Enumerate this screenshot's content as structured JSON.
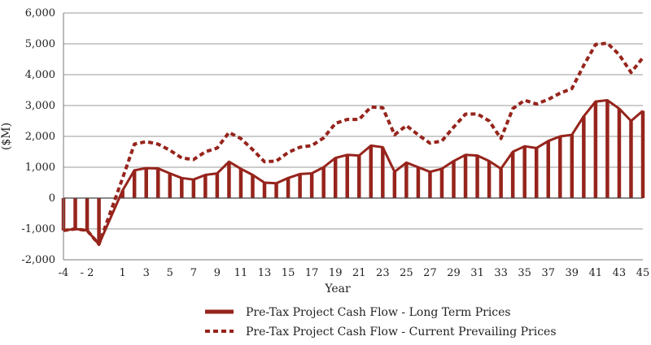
{
  "chart_data": {
    "type": "line",
    "ylabel": "($M)",
    "xlabel": "Year",
    "ylim": [
      -2000,
      6000
    ],
    "yticks": [
      -2000,
      -1000,
      0,
      1000,
      2000,
      3000,
      4000,
      5000,
      6000
    ],
    "ytick_labels": [
      "-2,000",
      "-1,000",
      "0",
      "1,000",
      "2,000",
      "3,000",
      "4,000",
      "5,000",
      "6,000"
    ],
    "xlim": [
      -4,
      45
    ],
    "xticks": [
      -4,
      -2,
      1,
      3,
      5,
      7,
      9,
      11,
      13,
      15,
      17,
      19,
      21,
      23,
      25,
      27,
      29,
      31,
      33,
      35,
      37,
      39,
      41,
      43,
      45
    ],
    "xtick_labels": [
      "-4",
      "- 2",
      "1",
      "3",
      "5",
      "7",
      "9",
      "11",
      "13",
      "15",
      "17",
      "19",
      "21",
      "23",
      "25",
      "27",
      "29",
      "31",
      "33",
      "35",
      "37",
      "39",
      "41",
      "43",
      "45"
    ],
    "grid": true,
    "legend_position": "bottom",
    "colors": {
      "series": "#96241c",
      "grid": "#999999",
      "axis": "#777777"
    },
    "x": [
      -4,
      -3,
      -2,
      -1,
      1,
      2,
      3,
      4,
      5,
      6,
      7,
      8,
      9,
      10,
      11,
      12,
      13,
      14,
      15,
      16,
      17,
      18,
      19,
      20,
      21,
      22,
      23,
      24,
      25,
      26,
      27,
      28,
      29,
      30,
      31,
      32,
      33,
      34,
      35,
      36,
      37,
      38,
      39,
      40,
      41,
      42,
      43,
      44,
      45
    ],
    "series": [
      {
        "name": "Pre-Tax Project Cash Flow - Long Term Prices",
        "style": "solid-with-bars",
        "values": [
          -1050,
          -1000,
          -1050,
          -1500,
          250,
          900,
          970,
          960,
          800,
          650,
          600,
          750,
          800,
          1180,
          950,
          750,
          500,
          480,
          650,
          780,
          800,
          1000,
          1300,
          1400,
          1380,
          1700,
          1650,
          850,
          1150,
          1000,
          850,
          950,
          1200,
          1400,
          1380,
          1200,
          950,
          1500,
          1680,
          1620,
          1850,
          2000,
          2050,
          2650,
          3130,
          3170,
          2900,
          2500,
          2830
        ]
      },
      {
        "name": "Pre-Tax Project Cash Flow - Current Prevailing Prices",
        "style": "dashed",
        "values": [
          -1050,
          -1000,
          -1050,
          -1500,
          650,
          1750,
          1830,
          1750,
          1550,
          1300,
          1250,
          1500,
          1620,
          2130,
          1930,
          1570,
          1180,
          1200,
          1480,
          1650,
          1700,
          1950,
          2420,
          2550,
          2550,
          2950,
          2930,
          2050,
          2350,
          2050,
          1780,
          1850,
          2300,
          2720,
          2730,
          2500,
          1930,
          2900,
          3170,
          3050,
          3200,
          3400,
          3550,
          4300,
          4980,
          5020,
          4650,
          4070,
          4550
        ]
      }
    ]
  }
}
